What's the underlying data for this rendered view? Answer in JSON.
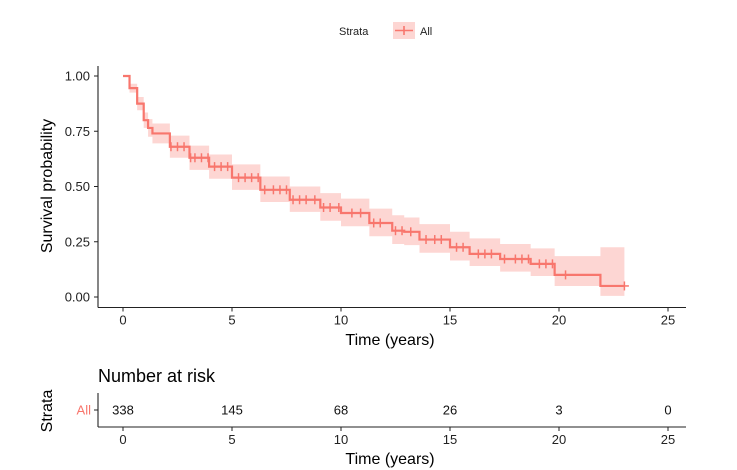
{
  "chart_data": [
    {
      "type": "line",
      "subtype": "kaplan-meier survival curve",
      "title": "",
      "xlabel": "Time (years)",
      "ylabel": "Survival probability",
      "xlim": [
        -0.6,
        25.8
      ],
      "ylim": [
        0,
        1
      ],
      "x_ticks": [
        0,
        5,
        10,
        15,
        20,
        25
      ],
      "x_tick_labels": [
        "0",
        "5",
        "10",
        "15",
        "20",
        "25"
      ],
      "y_ticks": [
        0,
        0.25,
        0.5,
        0.75,
        1.0
      ],
      "y_tick_labels": [
        "0.00",
        "0.25",
        "0.50",
        "0.75",
        "1.00"
      ],
      "grid": false,
      "legend": {
        "title": "Strata",
        "placement": "top",
        "entries": [
          "All"
        ]
      },
      "color": "#F8766D",
      "ci_fill": "#F8766D",
      "ci_opacity": 0.3,
      "series": [
        {
          "name": "All",
          "steps": [
            {
              "x": 0.0,
              "y": 1.0
            },
            {
              "x": 0.3,
              "y": 0.945
            },
            {
              "x": 0.65,
              "y": 0.875
            },
            {
              "x": 0.95,
              "y": 0.8
            },
            {
              "x": 1.15,
              "y": 0.765
            },
            {
              "x": 1.35,
              "y": 0.74
            },
            {
              "x": 2.15,
              "y": 0.68
            },
            {
              "x": 3.05,
              "y": 0.63
            },
            {
              "x": 3.95,
              "y": 0.59
            },
            {
              "x": 5.0,
              "y": 0.54
            },
            {
              "x": 6.3,
              "y": 0.485
            },
            {
              "x": 7.65,
              "y": 0.44
            },
            {
              "x": 9.05,
              "y": 0.405
            },
            {
              "x": 10.0,
              "y": 0.38
            },
            {
              "x": 11.3,
              "y": 0.335
            },
            {
              "x": 12.35,
              "y": 0.3
            },
            {
              "x": 12.9,
              "y": 0.295
            },
            {
              "x": 13.6,
              "y": 0.26
            },
            {
              "x": 15.0,
              "y": 0.225
            },
            {
              "x": 15.9,
              "y": 0.195
            },
            {
              "x": 17.3,
              "y": 0.172
            },
            {
              "x": 18.7,
              "y": 0.15
            },
            {
              "x": 19.8,
              "y": 0.1
            },
            {
              "x": 21.9,
              "y": 0.05
            },
            {
              "x": 23.0,
              "y": 0.05
            }
          ],
          "ci_upper": [
            {
              "x": 0.0,
              "y": 1.0
            },
            {
              "x": 0.3,
              "y": 0.965
            },
            {
              "x": 0.65,
              "y": 0.905
            },
            {
              "x": 0.95,
              "y": 0.835
            },
            {
              "x": 1.15,
              "y": 0.805
            },
            {
              "x": 1.35,
              "y": 0.785
            },
            {
              "x": 2.15,
              "y": 0.73
            },
            {
              "x": 3.05,
              "y": 0.685
            },
            {
              "x": 3.95,
              "y": 0.645
            },
            {
              "x": 5.0,
              "y": 0.6
            },
            {
              "x": 6.3,
              "y": 0.545
            },
            {
              "x": 7.65,
              "y": 0.5
            },
            {
              "x": 9.05,
              "y": 0.47
            },
            {
              "x": 10.0,
              "y": 0.445
            },
            {
              "x": 11.3,
              "y": 0.4
            },
            {
              "x": 12.35,
              "y": 0.37
            },
            {
              "x": 12.9,
              "y": 0.36
            },
            {
              "x": 13.6,
              "y": 0.33
            },
            {
              "x": 15.0,
              "y": 0.295
            },
            {
              "x": 15.9,
              "y": 0.265
            },
            {
              "x": 17.3,
              "y": 0.24
            },
            {
              "x": 18.7,
              "y": 0.22
            },
            {
              "x": 19.8,
              "y": 0.185
            },
            {
              "x": 21.9,
              "y": 0.225
            },
            {
              "x": 23.0,
              "y": 0.225
            }
          ],
          "ci_lower": [
            {
              "x": 0.0,
              "y": 1.0
            },
            {
              "x": 0.3,
              "y": 0.925
            },
            {
              "x": 0.65,
              "y": 0.845
            },
            {
              "x": 0.95,
              "y": 0.765
            },
            {
              "x": 1.15,
              "y": 0.725
            },
            {
              "x": 1.35,
              "y": 0.695
            },
            {
              "x": 2.15,
              "y": 0.63
            },
            {
              "x": 3.05,
              "y": 0.575
            },
            {
              "x": 3.95,
              "y": 0.535
            },
            {
              "x": 5.0,
              "y": 0.485
            },
            {
              "x": 6.3,
              "y": 0.43
            },
            {
              "x": 7.65,
              "y": 0.385
            },
            {
              "x": 9.05,
              "y": 0.345
            },
            {
              "x": 10.0,
              "y": 0.32
            },
            {
              "x": 11.3,
              "y": 0.275
            },
            {
              "x": 12.35,
              "y": 0.24
            },
            {
              "x": 12.9,
              "y": 0.235
            },
            {
              "x": 13.6,
              "y": 0.2
            },
            {
              "x": 15.0,
              "y": 0.165
            },
            {
              "x": 15.9,
              "y": 0.14
            },
            {
              "x": 17.3,
              "y": 0.115
            },
            {
              "x": 18.7,
              "y": 0.095
            },
            {
              "x": 19.8,
              "y": 0.05
            },
            {
              "x": 21.9,
              "y": 0.005
            },
            {
              "x": 23.0,
              "y": 0.005
            }
          ],
          "censor_times": [
            2.2,
            2.5,
            2.8,
            3.1,
            3.3,
            3.6,
            3.9,
            4.2,
            4.5,
            4.8,
            5.3,
            5.6,
            5.9,
            6.2,
            6.5,
            6.9,
            7.2,
            7.5,
            7.8,
            8.1,
            8.4,
            8.8,
            9.2,
            9.5,
            9.9,
            10.5,
            10.9,
            11.5,
            11.8,
            12.5,
            12.8,
            13.2,
            13.9,
            14.3,
            14.6,
            15.3,
            15.6,
            16.3,
            16.6,
            16.9,
            17.5,
            18.0,
            18.3,
            18.6,
            19.1,
            19.4,
            19.7,
            20.3,
            23.0
          ]
        }
      ]
    },
    {
      "type": "table",
      "title": "Number at risk",
      "ylabel": "Strata",
      "xlabel": "Time (years)",
      "row_labels": [
        "All"
      ],
      "x_ticks": [
        0,
        5,
        10,
        15,
        20,
        25
      ],
      "x_tick_labels": [
        "0",
        "5",
        "10",
        "15",
        "20",
        "25"
      ],
      "rows": [
        {
          "strata": "All",
          "values": [
            338,
            145,
            68,
            26,
            3,
            0
          ]
        }
      ]
    }
  ],
  "legend": {
    "title": "Strata",
    "entry": "All"
  },
  "risk_table": {
    "title": "Number at risk",
    "ylabel": "Strata",
    "row_label": "All",
    "xlabel": "Time (years)"
  }
}
